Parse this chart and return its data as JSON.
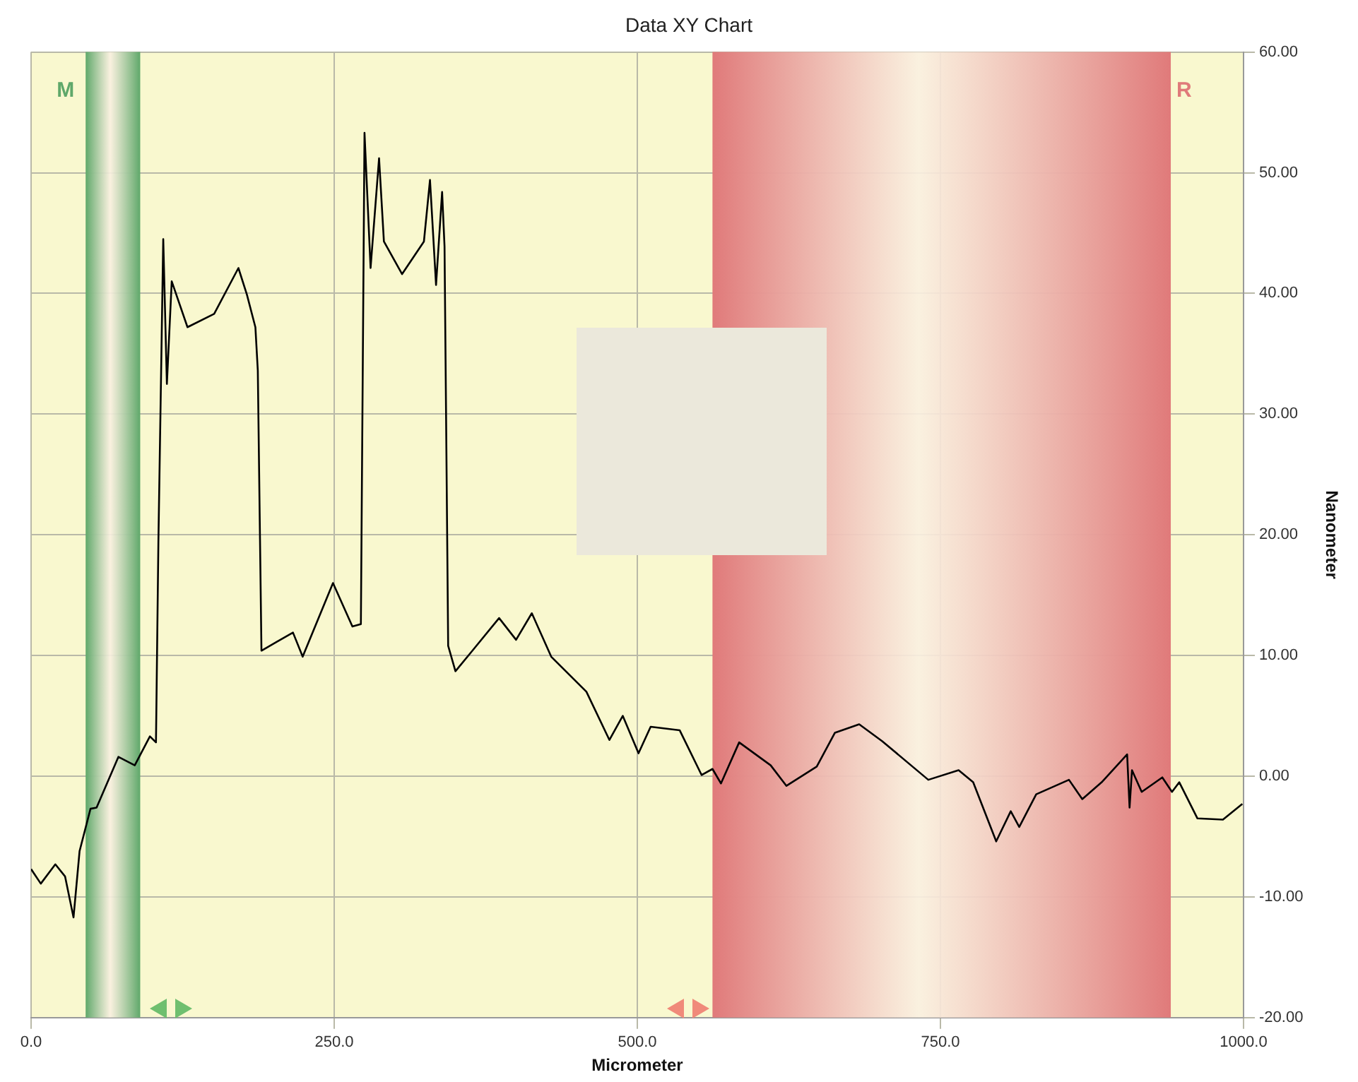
{
  "chart_data": {
    "type": "line",
    "title": "Data XY Chart",
    "xlabel": "Micrometer",
    "ylabel": "Nanometer",
    "xlim": [
      0,
      1000
    ],
    "ylim": [
      -20,
      60
    ],
    "xticks": [
      {
        "value": 0,
        "label": "0.0"
      },
      {
        "value": 250,
        "label": "250.0"
      },
      {
        "value": 500,
        "label": "500.0"
      },
      {
        "value": 750,
        "label": "750.0"
      },
      {
        "value": 1000,
        "label": "1000.0"
      }
    ],
    "yticks": [
      {
        "value": -20,
        "label": "-20.00"
      },
      {
        "value": -10,
        "label": "-10.00"
      },
      {
        "value": 0,
        "label": "0.00"
      },
      {
        "value": 10,
        "label": "10.00"
      },
      {
        "value": 20,
        "label": "20.00"
      },
      {
        "value": 30,
        "label": "30.00"
      },
      {
        "value": 40,
        "label": "40.00"
      },
      {
        "value": 50,
        "label": "50.00"
      },
      {
        "value": 60,
        "label": "60.00"
      }
    ],
    "grid": true,
    "legend": false,
    "marker": "none",
    "line_style": "solid",
    "x": [
      0,
      8,
      20,
      28,
      35,
      40,
      49,
      54,
      72,
      85.5,
      98,
      103,
      105,
      109,
      112,
      116,
      129,
      151,
      171,
      178,
      185,
      187,
      190,
      202,
      216,
      224,
      249,
      265,
      272,
      275,
      280,
      287,
      291,
      306,
      324,
      329,
      334,
      339,
      341,
      344,
      350,
      364,
      386,
      400,
      413,
      429,
      458,
      477,
      488,
      501,
      511,
      535,
      553,
      562,
      569,
      584,
      610,
      623,
      648,
      663,
      683,
      702,
      740,
      765,
      777,
      796,
      808,
      815,
      829,
      856,
      867,
      883,
      904,
      906,
      908,
      916,
      933,
      941,
      947,
      962,
      983,
      999
    ],
    "series": [
      {
        "color": "#000000",
        "values": [
          -7.7,
          -8.9,
          -7.3,
          -8.3,
          -11.7,
          -6.2,
          -2.7,
          -2.6,
          1.6,
          0.9,
          3.3,
          2.8,
          19.4,
          44.5,
          32.5,
          41,
          37.2,
          38.3,
          42.1,
          39.9,
          37.2,
          33.6,
          10.4,
          11.1,
          11.9,
          9.9,
          16.0,
          12.4,
          12.6,
          53.3,
          42.1,
          51.2,
          44.3,
          41.6,
          44.3,
          49.4,
          40.7,
          48.4,
          43.9,
          10.8,
          8.7,
          10.4,
          13.1,
          11.3,
          13.5,
          9.9,
          7.0,
          3.0,
          5.0,
          1.9,
          4.1,
          3.8,
          0.1,
          0.6,
          -0.6,
          2.8,
          0.9,
          -0.8,
          0.8,
          3.6,
          4.3,
          2.9,
          -0.3,
          0.5,
          -0.5,
          -5.4,
          -2.9,
          -4.2,
          -1.5,
          -0.3,
          -1.9,
          -0.5,
          1.8,
          -2.6,
          0.5,
          -1.3,
          -0.1,
          -1.3,
          -0.5,
          -3.5,
          -3.6,
          -2.3
        ]
      }
    ],
    "bands": [
      {
        "axis": "x",
        "from": 45,
        "to": 90,
        "label": "M",
        "color": "#5fa86a"
      },
      {
        "axis": "x",
        "from": 562,
        "to": 940,
        "label": "R",
        "color": "#e07a7a"
      }
    ]
  }
}
